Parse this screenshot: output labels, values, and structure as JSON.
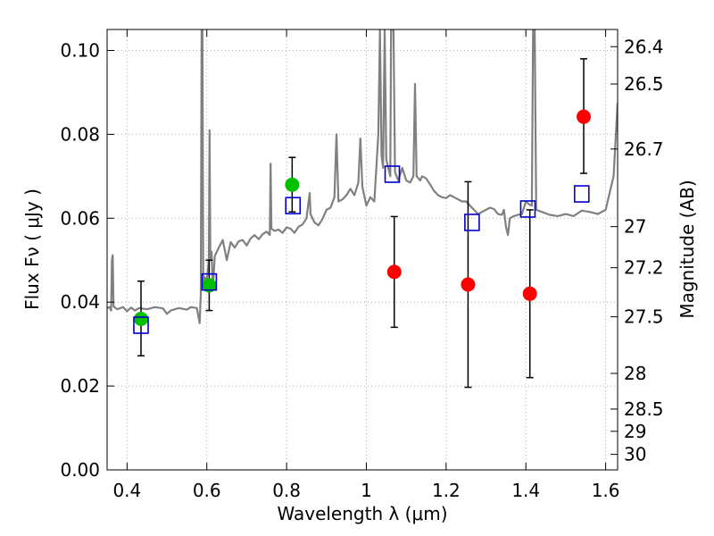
{
  "chart_data": {
    "type": "scatter",
    "xlabel": "Wavelength  λ (μm)",
    "ylabel": "Flux  Fν  ( μJy )",
    "y2label": "Magnitude (AB)",
    "xlim": [
      0.35,
      1.63
    ],
    "ylim": [
      0.0,
      0.105
    ],
    "grid": true,
    "x_ticks": [
      0.4,
      0.6,
      0.8,
      1.0,
      1.2,
      1.4,
      1.6
    ],
    "x_tick_labels": [
      "0.4",
      "0.6",
      "0.8",
      "1",
      "1.2",
      "1.4",
      "1.6"
    ],
    "y_ticks": [
      0.0,
      0.02,
      0.04,
      0.06,
      0.08,
      0.1
    ],
    "y_tick_labels": [
      "0.00",
      "0.02",
      "0.04",
      "0.06",
      "0.08",
      "0.10"
    ],
    "y2_ticks": [
      {
        "label": "26.4",
        "flux": 0.1009
      },
      {
        "label": "26.5",
        "flux": 0.092
      },
      {
        "label": "26.7",
        "flux": 0.0765
      },
      {
        "label": "27",
        "flux": 0.058
      },
      {
        "label": "27.2",
        "flux": 0.0482
      },
      {
        "label": "27.5",
        "flux": 0.0365
      },
      {
        "label": "28",
        "flux": 0.023
      },
      {
        "label": "28.5",
        "flux": 0.0145
      },
      {
        "label": "29",
        "flux": 0.0092
      },
      {
        "label": "30",
        "flux": 0.0037
      }
    ],
    "colors": {
      "spectrum": "#808080",
      "green_points": "#00c000",
      "red_points": "#ff0000",
      "model_squares": "#0000cc",
      "errorbars": "#000000",
      "grid": "#aaaaaa"
    },
    "series": [
      {
        "kind": "points",
        "color": "green",
        "points": [
          {
            "x": 0.435,
            "y": 0.036,
            "yerr_low": 0.0272,
            "yerr_high": 0.045
          },
          {
            "x": 0.606,
            "y": 0.044,
            "yerr_low": 0.038,
            "yerr_high": 0.05
          },
          {
            "x": 0.814,
            "y": 0.068,
            "yerr_low": 0.0615,
            "yerr_high": 0.0745
          }
        ]
      },
      {
        "kind": "points",
        "color": "red",
        "points": [
          {
            "x": 1.07,
            "y": 0.0472,
            "yerr_low": 0.034,
            "yerr_high": 0.0604
          },
          {
            "x": 1.255,
            "y": 0.0442,
            "yerr_low": 0.0197,
            "yerr_high": 0.0687
          },
          {
            "x": 1.41,
            "y": 0.042,
            "yerr_low": 0.022,
            "yerr_high": 0.062
          },
          {
            "x": 1.545,
            "y": 0.0842,
            "yerr_low": 0.0707,
            "yerr_high": 0.098
          }
        ]
      },
      {
        "kind": "squares",
        "color": "blue",
        "points": [
          {
            "x": 0.435,
            "y": 0.0345
          },
          {
            "x": 0.606,
            "y": 0.0448
          },
          {
            "x": 0.816,
            "y": 0.063
          },
          {
            "x": 1.065,
            "y": 0.0705
          },
          {
            "x": 1.265,
            "y": 0.059
          },
          {
            "x": 1.405,
            "y": 0.0622
          },
          {
            "x": 1.54,
            "y": 0.0658
          }
        ]
      }
    ],
    "spectrum": [
      [
        0.35,
        0.0386
      ],
      [
        0.356,
        0.0388
      ],
      [
        0.36,
        0.038
      ],
      [
        0.362,
        0.05
      ],
      [
        0.364,
        0.0512
      ],
      [
        0.366,
        0.039
      ],
      [
        0.375,
        0.0383
      ],
      [
        0.39,
        0.0388
      ],
      [
        0.4,
        0.0378
      ],
      [
        0.41,
        0.0387
      ],
      [
        0.42,
        0.038
      ],
      [
        0.43,
        0.0386
      ],
      [
        0.45,
        0.0383
      ],
      [
        0.47,
        0.0388
      ],
      [
        0.49,
        0.0385
      ],
      [
        0.5,
        0.0372
      ],
      [
        0.51,
        0.038
      ],
      [
        0.53,
        0.0386
      ],
      [
        0.55,
        0.0382
      ],
      [
        0.56,
        0.0388
      ],
      [
        0.575,
        0.0386
      ],
      [
        0.582,
        0.035
      ],
      [
        0.585,
        0.042
      ],
      [
        0.587,
        0.105
      ],
      [
        0.589,
        0.105
      ],
      [
        0.591,
        0.045
      ],
      [
        0.594,
        0.046
      ],
      [
        0.6,
        0.0452
      ],
      [
        0.605,
        0.05
      ],
      [
        0.607,
        0.081
      ],
      [
        0.609,
        0.05
      ],
      [
        0.612,
        0.052
      ],
      [
        0.615,
        0.043
      ],
      [
        0.62,
        0.051
      ],
      [
        0.63,
        0.053
      ],
      [
        0.64,
        0.0548
      ],
      [
        0.65,
        0.05
      ],
      [
        0.66,
        0.0543
      ],
      [
        0.67,
        0.053
      ],
      [
        0.68,
        0.0545
      ],
      [
        0.69,
        0.0548
      ],
      [
        0.7,
        0.0535
      ],
      [
        0.71,
        0.0552
      ],
      [
        0.72,
        0.056
      ],
      [
        0.73,
        0.055
      ],
      [
        0.74,
        0.0562
      ],
      [
        0.75,
        0.0568
      ],
      [
        0.758,
        0.056
      ],
      [
        0.76,
        0.073
      ],
      [
        0.762,
        0.0575
      ],
      [
        0.77,
        0.057
      ],
      [
        0.78,
        0.0573
      ],
      [
        0.79,
        0.0565
      ],
      [
        0.8,
        0.0578
      ],
      [
        0.81,
        0.0575
      ],
      [
        0.82,
        0.0565
      ],
      [
        0.83,
        0.058
      ],
      [
        0.84,
        0.0585
      ],
      [
        0.85,
        0.06
      ],
      [
        0.858,
        0.066
      ],
      [
        0.86,
        0.061
      ],
      [
        0.87,
        0.059
      ],
      [
        0.88,
        0.0583
      ],
      [
        0.89,
        0.0598
      ],
      [
        0.9,
        0.062
      ],
      [
        0.91,
        0.0625
      ],
      [
        0.92,
        0.065
      ],
      [
        0.925,
        0.08
      ],
      [
        0.93,
        0.064
      ],
      [
        0.94,
        0.0645
      ],
      [
        0.95,
        0.0655
      ],
      [
        0.96,
        0.067
      ],
      [
        0.97,
        0.0655
      ],
      [
        0.98,
        0.0685
      ],
      [
        0.985,
        0.079
      ],
      [
        0.99,
        0.0675
      ],
      [
        1.0,
        0.063
      ],
      [
        1.01,
        0.065
      ],
      [
        1.02,
        0.064
      ],
      [
        1.03,
        0.08
      ],
      [
        1.034,
        0.105
      ],
      [
        1.038,
        0.075
      ],
      [
        1.042,
        0.072
      ],
      [
        1.046,
        0.105
      ],
      [
        1.05,
        0.074
      ],
      [
        1.06,
        0.07
      ],
      [
        1.062,
        0.105
      ],
      [
        1.068,
        0.105
      ],
      [
        1.072,
        0.071
      ],
      [
        1.08,
        0.069
      ],
      [
        1.09,
        0.072
      ],
      [
        1.1,
        0.069
      ],
      [
        1.11,
        0.0685
      ],
      [
        1.118,
        0.07
      ],
      [
        1.122,
        0.092
      ],
      [
        1.126,
        0.07
      ],
      [
        1.135,
        0.069
      ],
      [
        1.14,
        0.07
      ],
      [
        1.15,
        0.0695
      ],
      [
        1.16,
        0.068
      ],
      [
        1.17,
        0.0665
      ],
      [
        1.18,
        0.0655
      ],
      [
        1.19,
        0.065
      ],
      [
        1.2,
        0.0648
      ],
      [
        1.21,
        0.0655
      ],
      [
        1.22,
        0.065
      ],
      [
        1.24,
        0.064
      ],
      [
        1.25,
        0.064
      ],
      [
        1.26,
        0.063
      ],
      [
        1.27,
        0.062
      ],
      [
        1.28,
        0.061
      ],
      [
        1.29,
        0.0615
      ],
      [
        1.3,
        0.062
      ],
      [
        1.31,
        0.0625
      ],
      [
        1.32,
        0.0622
      ],
      [
        1.33,
        0.061
      ],
      [
        1.34,
        0.0608
      ],
      [
        1.345,
        0.062
      ],
      [
        1.35,
        0.058
      ],
      [
        1.355,
        0.056
      ],
      [
        1.36,
        0.06
      ],
      [
        1.37,
        0.0605
      ],
      [
        1.38,
        0.0608
      ],
      [
        1.39,
        0.061
      ],
      [
        1.395,
        0.0625
      ],
      [
        1.4,
        0.064
      ],
      [
        1.41,
        0.0632
      ],
      [
        1.415,
        0.063
      ],
      [
        1.418,
        0.105
      ],
      [
        1.422,
        0.105
      ],
      [
        1.426,
        0.062
      ],
      [
        1.44,
        0.0615
      ],
      [
        1.46,
        0.0608
      ],
      [
        1.48,
        0.0605
      ],
      [
        1.5,
        0.061
      ],
      [
        1.52,
        0.0605
      ],
      [
        1.54,
        0.0618
      ],
      [
        1.56,
        0.0615
      ],
      [
        1.58,
        0.061
      ],
      [
        1.6,
        0.062
      ],
      [
        1.62,
        0.07
      ],
      [
        1.63,
        0.0875
      ]
    ]
  }
}
